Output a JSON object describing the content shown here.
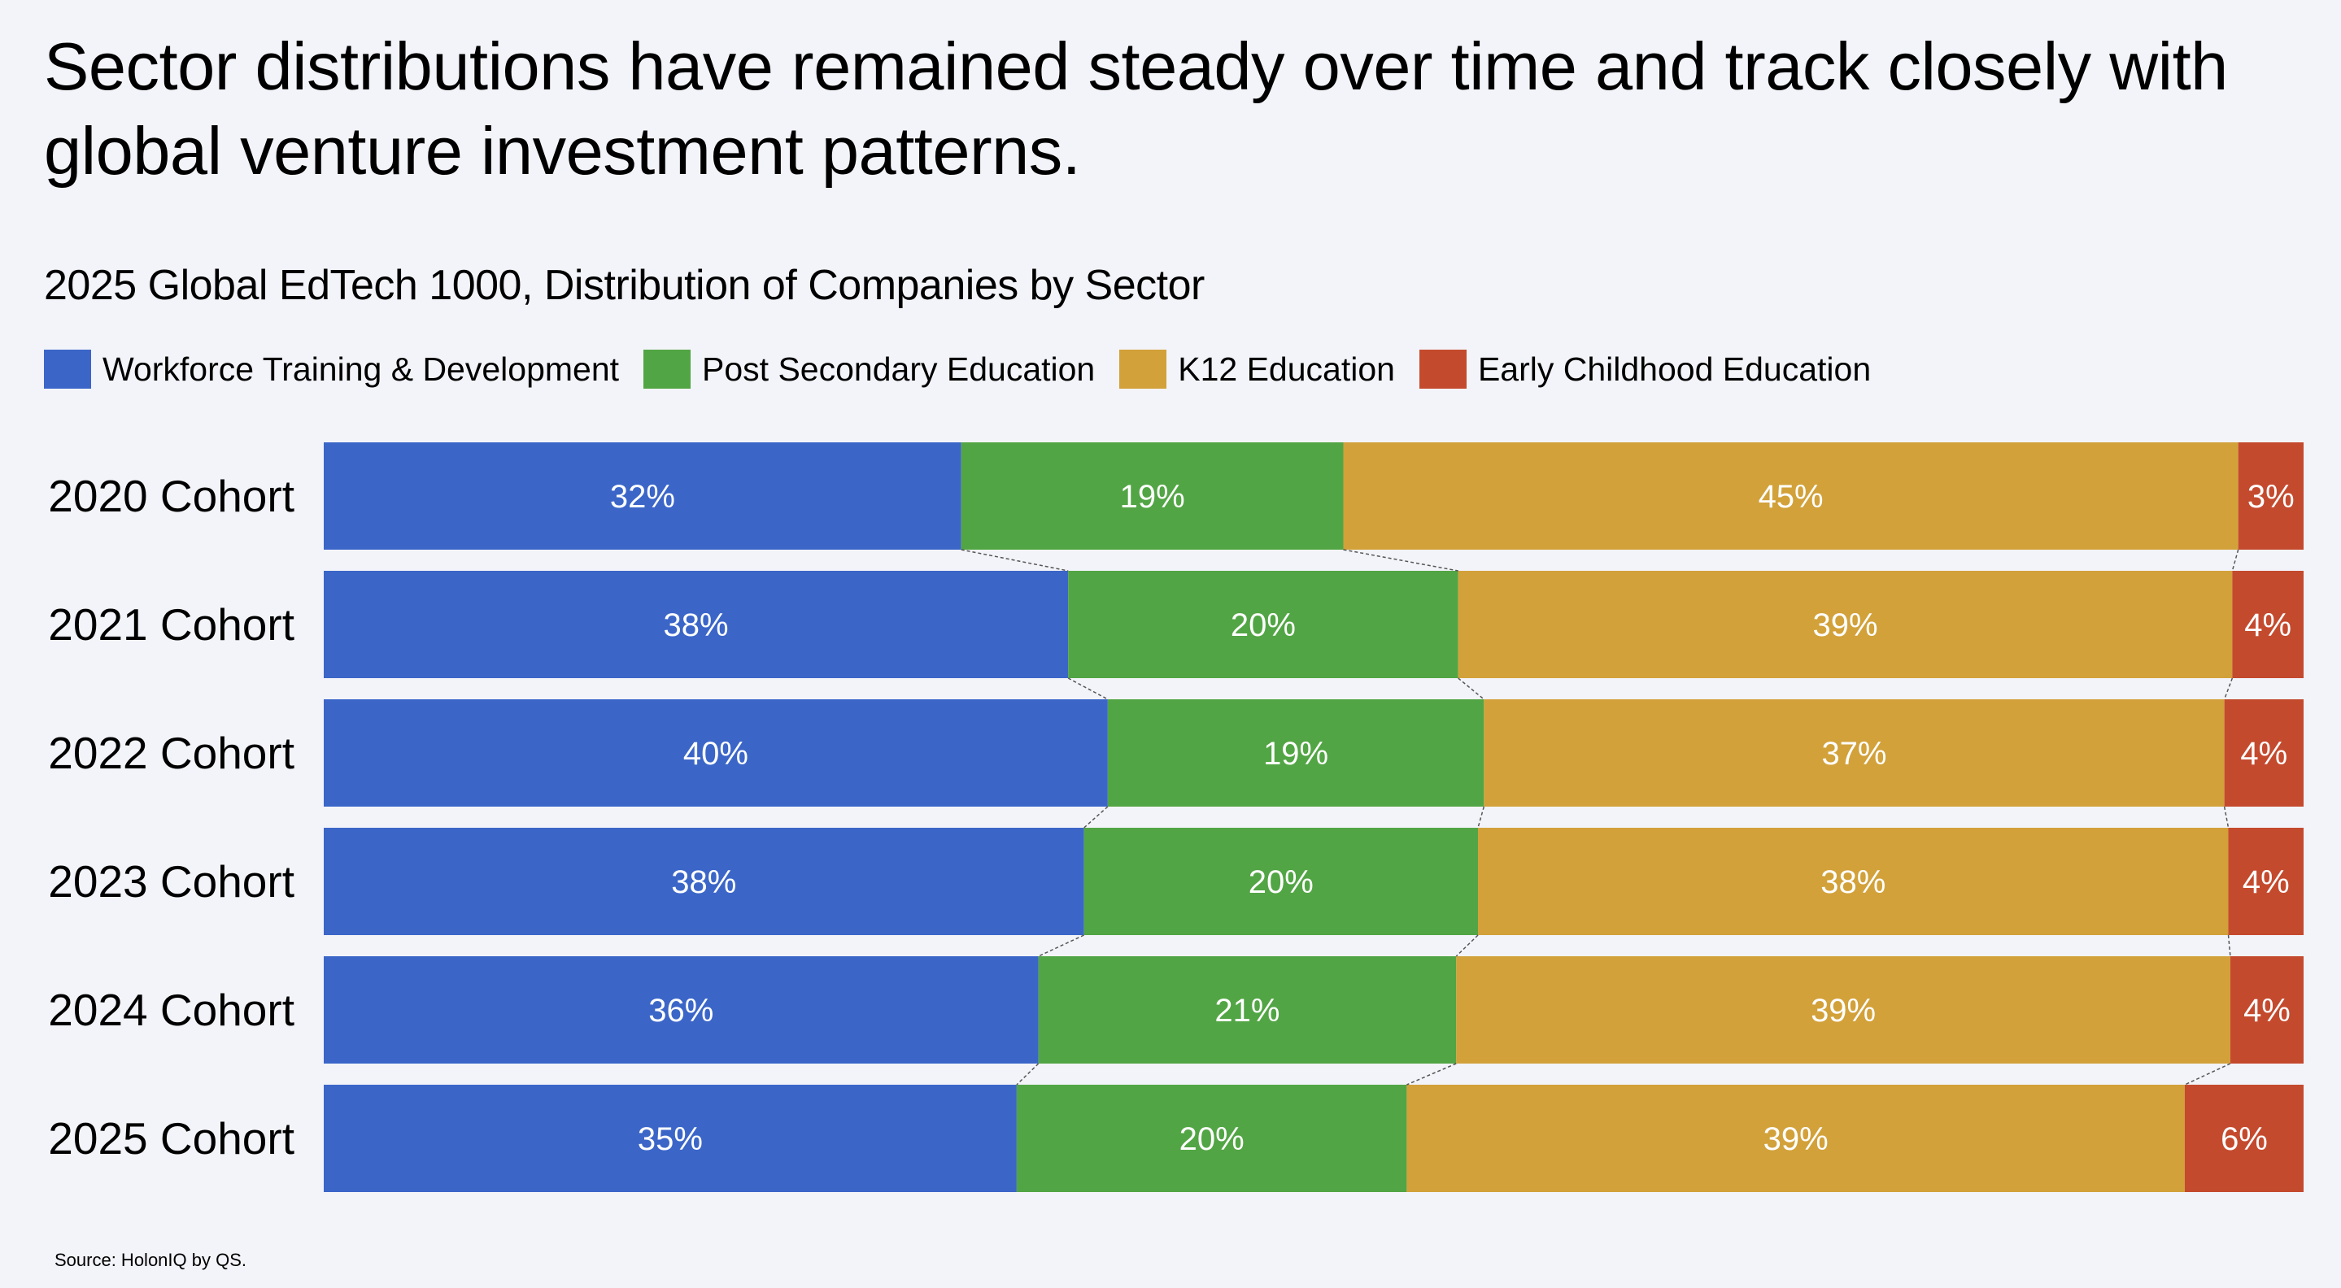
{
  "title": "Sector distributions have remained steady over time and track closely with global venture investment patterns.",
  "source": "Source: HolonIQ by QS.",
  "colors": {
    "background": "#f3f4f9",
    "label_text": "#ffffff",
    "connector": "#555555"
  },
  "chart_data": {
    "type": "bar",
    "orientation": "horizontal",
    "stacked": true,
    "normalized": true,
    "title": "2025 Global EdTech 1000, Distribution of Companies by Sector",
    "xlabel": "",
    "ylabel": "",
    "xlim": [
      0,
      100
    ],
    "legend_position": "top-left",
    "grid": false,
    "connector_lines": true,
    "categories": [
      "2020 Cohort",
      "2021 Cohort",
      "2022 Cohort",
      "2023 Cohort",
      "2024 Cohort",
      "2025 Cohort"
    ],
    "series": [
      {
        "name": "Workforce Training & Development",
        "color": "#3b66c8",
        "values": [
          32.2,
          37.6,
          39.6,
          38.4,
          36.1,
          35.0
        ],
        "labels": [
          "32%",
          "38%",
          "40%",
          "38%",
          "36%",
          "35%"
        ]
      },
      {
        "name": "Post Secondary Education",
        "color": "#52a544",
        "values": [
          19.3,
          19.7,
          19.0,
          19.9,
          21.1,
          19.7
        ],
        "labels": [
          "19%",
          "20%",
          "19%",
          "20%",
          "21%",
          "20%"
        ]
      },
      {
        "name": "K12 Education",
        "color": "#d2a13a",
        "values": [
          45.2,
          39.1,
          37.4,
          37.9,
          39.1,
          39.3
        ],
        "labels": [
          "45%",
          "39%",
          "37%",
          "38%",
          "39%",
          "39%"
        ]
      },
      {
        "name": "Early Childhood Education",
        "color": "#c44a2e",
        "values": [
          3.3,
          3.6,
          4.0,
          3.8,
          3.7,
          6.0
        ],
        "labels": [
          "3%",
          "4%",
          "4%",
          "4%",
          "4%",
          "6%"
        ]
      }
    ]
  }
}
